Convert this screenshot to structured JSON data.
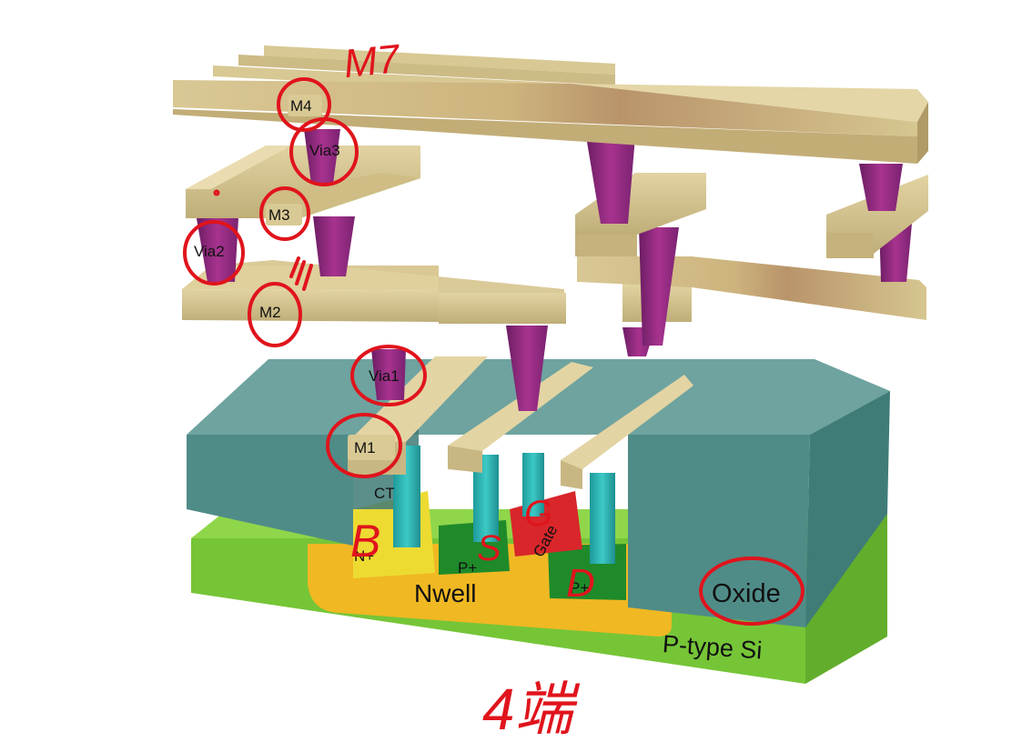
{
  "diagram": {
    "printed_labels": {
      "m4": "M4",
      "via3": "Via3",
      "m3": "M3",
      "via2": "Via2",
      "m2": "M2",
      "via1": "Via1",
      "m1": "M1",
      "ct": "CT",
      "nplus": "N+",
      "pplus_left": "P+",
      "pplus_right": "P+",
      "gate": "Gate",
      "nwell": "Nwell",
      "oxide": "Oxide",
      "substrate": "P-type Si"
    },
    "handwritten_annotations": {
      "top_metal": "M7",
      "body_terminal": "B",
      "source": "S",
      "gate": "G",
      "drain": "D",
      "four_terminals": "4端"
    },
    "colors": {
      "metal": "#d4c38f",
      "via": "#9a2a86",
      "contact": "#29b6b6",
      "oxide": "#4f8c88",
      "substrate": "#7cc83a",
      "nwell": "#f0b823",
      "nplus": "#eddb32",
      "pplus": "#1f8a2a",
      "gate": "#d8262b",
      "ink": "#e0141c"
    }
  }
}
